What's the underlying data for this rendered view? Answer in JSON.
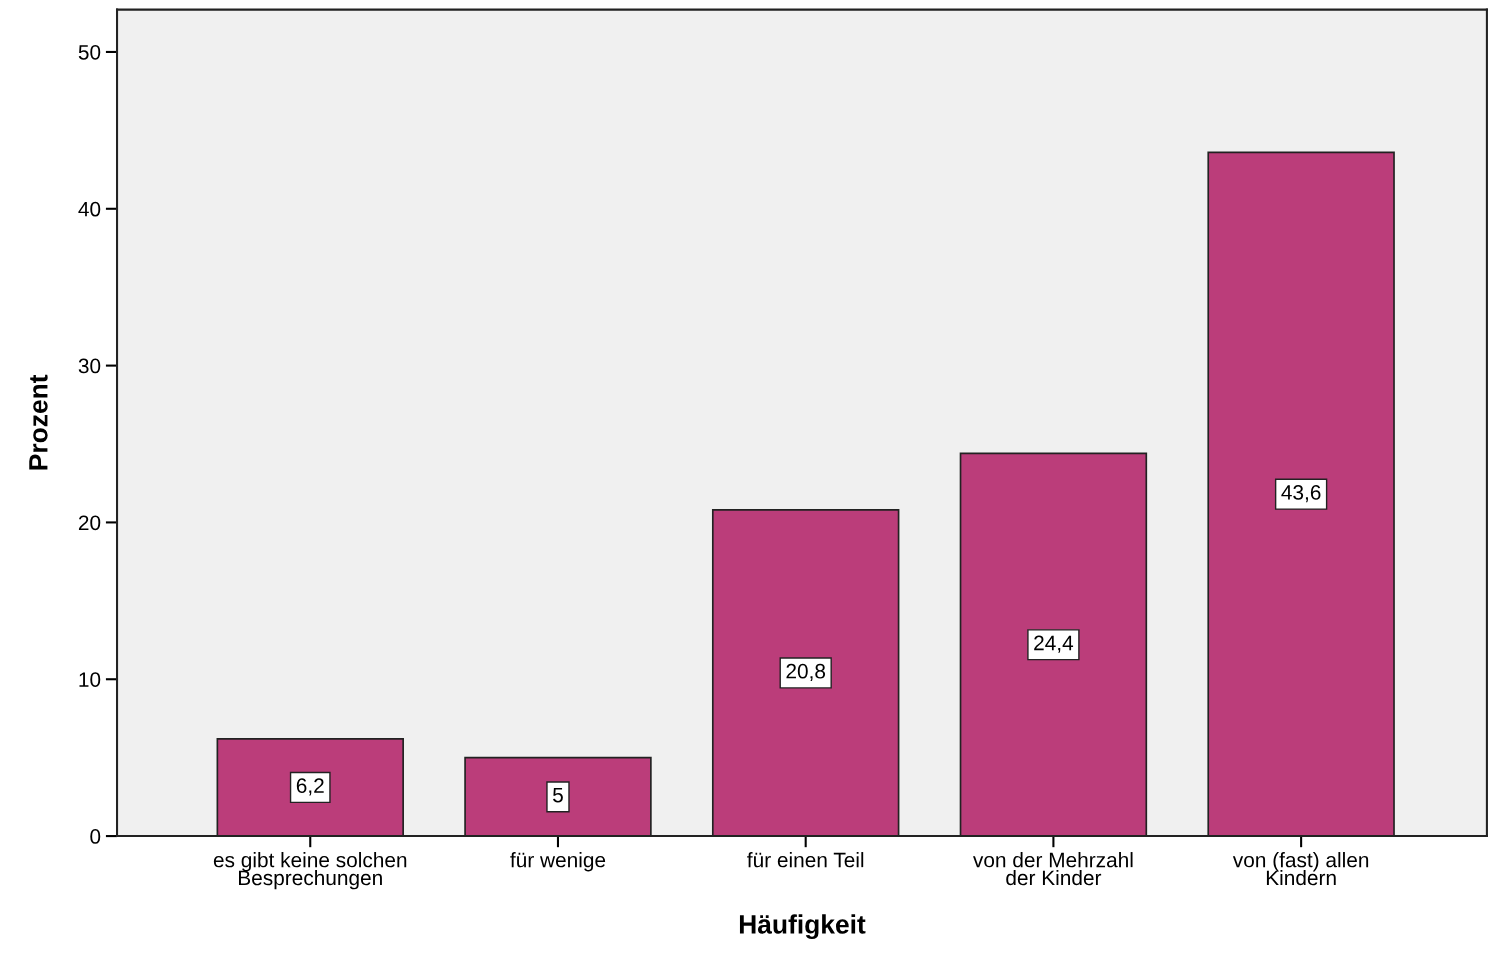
{
  "chart_data": {
    "type": "bar",
    "xlabel": "Häufigkeit",
    "ylabel": "Prozent",
    "categories": [
      "es gibt keine solchen\nBesprechungen",
      "für wenige",
      "für einen Teil",
      "von der Mehrzahl\nder Kinder",
      "von (fast) allen\nKindern"
    ],
    "values": [
      6.2,
      5,
      20.8,
      24.4,
      43.6
    ],
    "value_labels": [
      "6,2",
      "5",
      "20,8",
      "24,4",
      "43,6"
    ],
    "color": "#bb3d7a",
    "ylim": [
      0,
      52.7
    ],
    "yticks": [
      0,
      10,
      20,
      30,
      40,
      50
    ],
    "grid": false
  }
}
